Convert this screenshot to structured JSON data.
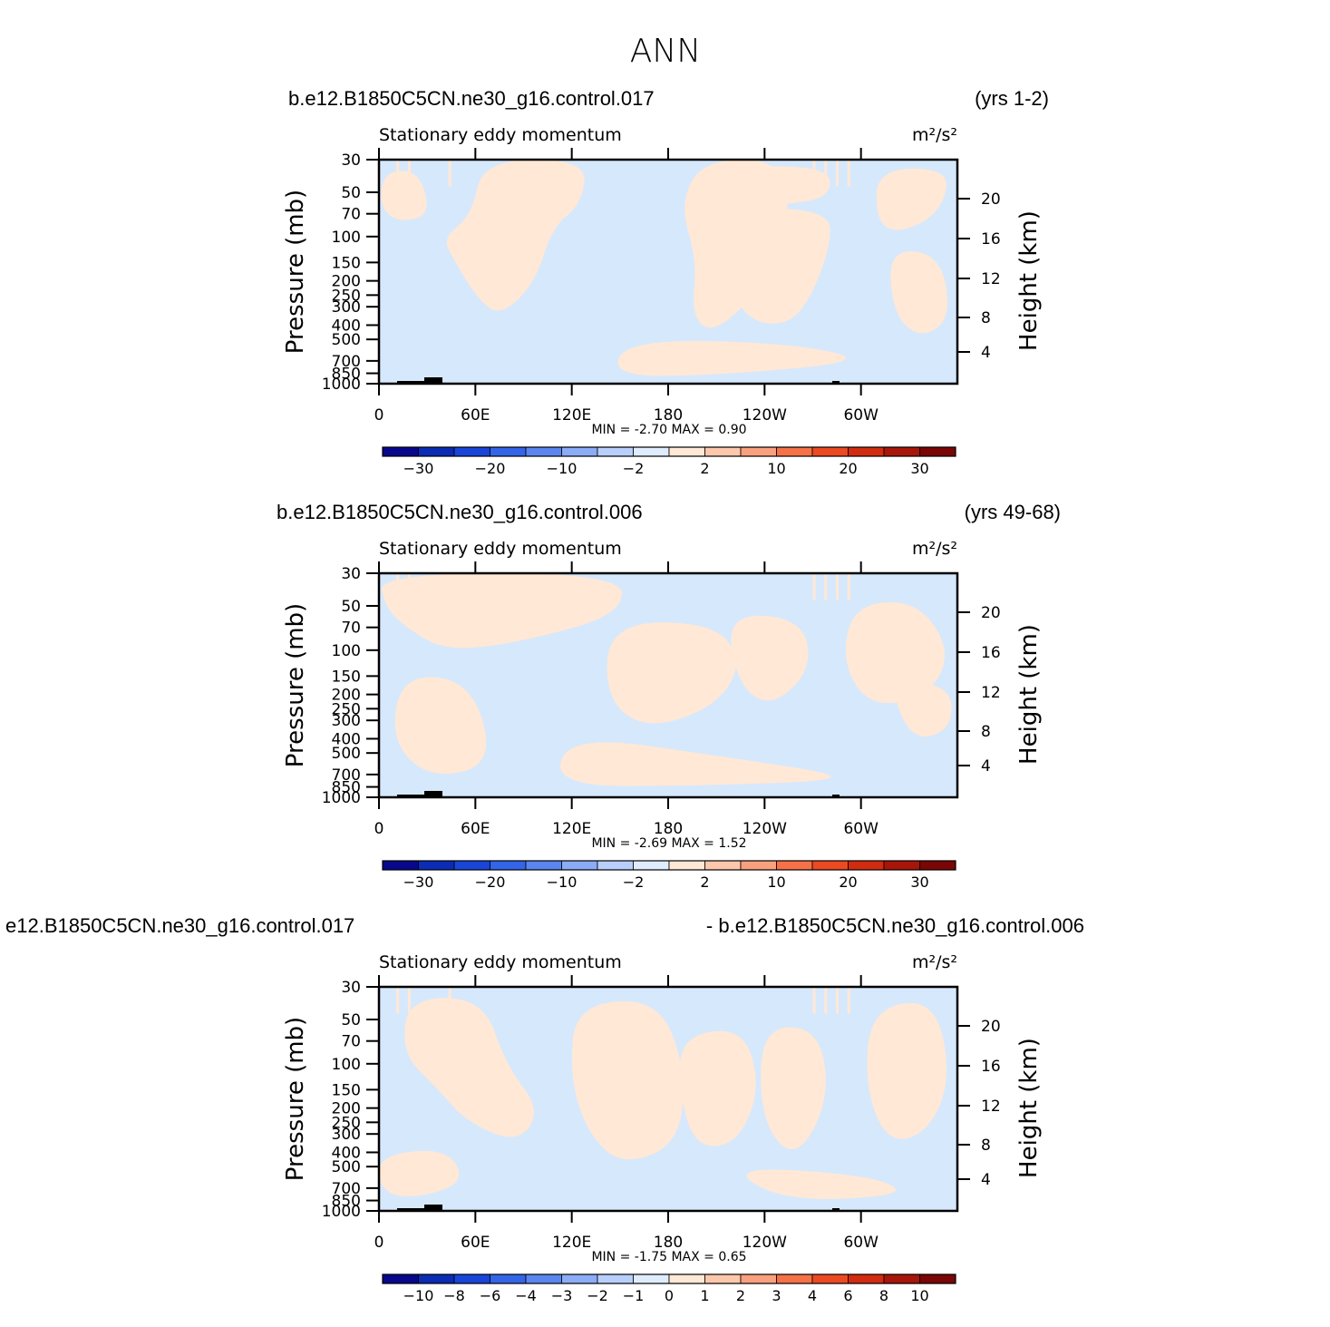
{
  "figure": {
    "title": "ANN",
    "colors": {
      "positive_fill": "#ffe8d6",
      "negative_fill": "#d6e8fc",
      "frame": "#000000"
    }
  },
  "panels": [
    {
      "case_label": "b.e12.B1850C5CN.ne30_g16.control.017",
      "years_label": "(yrs 1-2)",
      "variable_label": "Stationary eddy momentum",
      "units_label": "m²/s²",
      "stats_label": "MIN =   -2.70   MAX =    0.90",
      "min": -2.7,
      "max": 0.9,
      "colorbar": {
        "labels": [
          "-30",
          "-20",
          "-10",
          "-2",
          "2",
          "10",
          "20",
          "30"
        ],
        "label_boundary_index": [
          1,
          3,
          5,
          7,
          9,
          11,
          13,
          15
        ],
        "colors": [
          "#08088c",
          "#0b2cb4",
          "#1946d8",
          "#3465e8",
          "#5b86f0",
          "#8bacf6",
          "#b9cffb",
          "#deecfe",
          "#ffe8d6",
          "#fdc7ac",
          "#f9a07e",
          "#f57248",
          "#ec4a22",
          "#d12c10",
          "#a8160a",
          "#7a0606"
        ]
      }
    },
    {
      "case_label": "b.e12.B1850C5CN.ne30_g16.control.006",
      "years_label": "(yrs 49-68)",
      "variable_label": "Stationary eddy momentum",
      "units_label": "m²/s²",
      "stats_label": "MIN =   -2.69   MAX =    1.52",
      "min": -2.69,
      "max": 1.52,
      "colorbar": {
        "labels": [
          "-30",
          "-20",
          "-10",
          "-2",
          "2",
          "10",
          "20",
          "30"
        ],
        "label_boundary_index": [
          1,
          3,
          5,
          7,
          9,
          11,
          13,
          15
        ],
        "colors": [
          "#08088c",
          "#0b2cb4",
          "#1946d8",
          "#3465e8",
          "#5b86f0",
          "#8bacf6",
          "#b9cffb",
          "#deecfe",
          "#ffe8d6",
          "#fdc7ac",
          "#f9a07e",
          "#f57248",
          "#ec4a22",
          "#d12c10",
          "#a8160a",
          "#7a0606"
        ]
      }
    },
    {
      "case_label": "e12.B1850C5CN.ne30_g16.control.017",
      "years_label": "- b.e12.B1850C5CN.ne30_g16.control.006",
      "variable_label": "Stationary eddy momentum",
      "units_label": "m²/s²",
      "stats_label": "MIN =   -1.75   MAX =    0.65",
      "min": -1.75,
      "max": 0.65,
      "colorbar": {
        "labels": [
          "-10",
          "-8",
          "-6",
          "-4",
          "-3",
          "-2",
          "-1",
          "0",
          "1",
          "2",
          "3",
          "4",
          "6",
          "8",
          "10"
        ],
        "label_boundary_index": [
          1,
          2,
          3,
          4,
          5,
          6,
          7,
          8,
          9,
          10,
          11,
          12,
          13,
          14,
          15
        ],
        "colors": [
          "#08088c",
          "#0b2cb4",
          "#1946d8",
          "#3465e8",
          "#5b86f0",
          "#8bacf6",
          "#b9cffb",
          "#deecfe",
          "#ffe8d6",
          "#fdc7ac",
          "#f9a07e",
          "#f57248",
          "#ec4a22",
          "#d12c10",
          "#a8160a",
          "#7a0606"
        ]
      }
    }
  ],
  "axes": {
    "left_label": "Pressure (mb)",
    "right_label": "Height (km)",
    "pressure_ticks": [
      "30",
      "50",
      "70",
      "100",
      "150",
      "200",
      "250",
      "300",
      "400",
      "500",
      "700",
      "850",
      "1000"
    ],
    "height_ticks": [
      "20",
      "16",
      "12",
      "8",
      "4"
    ],
    "longitude_ticks": [
      "0",
      "60E",
      "120E",
      "180",
      "120W",
      "60W"
    ],
    "pressure_range_mb": [
      1000,
      30
    ],
    "longitude_range_deg": [
      0,
      360
    ]
  },
  "chart_data": [
    {
      "type": "heatmap",
      "title": "Stationary eddy momentum",
      "xlabel": "",
      "ylabel": "Pressure (mb)",
      "x": "longitude 0-360",
      "y_ticks_mb": [
        30,
        50,
        70,
        100,
        150,
        200,
        250,
        300,
        400,
        500,
        700,
        850,
        1000
      ],
      "min": -2.7,
      "max": 0.9,
      "contour_levels": [
        -30,
        -20,
        -10,
        -2,
        2,
        10,
        20,
        30
      ]
    },
    {
      "type": "heatmap",
      "title": "Stationary eddy momentum",
      "xlabel": "",
      "ylabel": "Pressure (mb)",
      "x": "longitude 0-360",
      "y_ticks_mb": [
        30,
        50,
        70,
        100,
        150,
        200,
        250,
        300,
        400,
        500,
        700,
        850,
        1000
      ],
      "min": -2.69,
      "max": 1.52,
      "contour_levels": [
        -30,
        -20,
        -10,
        -2,
        2,
        10,
        20,
        30
      ]
    },
    {
      "type": "heatmap",
      "title": "Stationary eddy momentum",
      "xlabel": "",
      "ylabel": "Pressure (mb)",
      "x": "longitude 0-360",
      "y_ticks_mb": [
        30,
        50,
        70,
        100,
        150,
        200,
        250,
        300,
        400,
        500,
        700,
        850,
        1000
      ],
      "min": -1.75,
      "max": 0.65,
      "contour_levels": [
        -10,
        -8,
        -6,
        -4,
        -3,
        -2,
        -1,
        0,
        1,
        2,
        3,
        4,
        6,
        8,
        10
      ]
    }
  ]
}
